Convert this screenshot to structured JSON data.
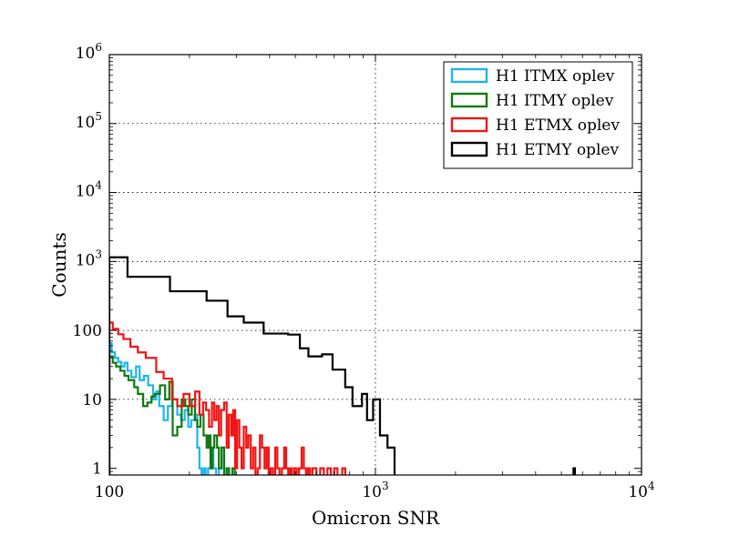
{
  "chart_data": {
    "type": "histogram",
    "xlabel": "Omicron SNR",
    "ylabel": "Counts",
    "x_scale": "log",
    "y_scale": "log",
    "xlim": [
      100,
      10000
    ],
    "ylim": [
      0.8,
      1000000
    ],
    "grid": true,
    "legend_position": "top-right",
    "x_ticks": [
      {
        "value": 100,
        "base": "100",
        "exp": ""
      },
      {
        "value": 1000,
        "base": "10",
        "exp": "3"
      },
      {
        "value": 10000,
        "base": "10",
        "exp": "4"
      }
    ],
    "y_ticks": [
      {
        "value": 1,
        "base": "1",
        "exp": ""
      },
      {
        "value": 10,
        "base": "10",
        "exp": ""
      },
      {
        "value": 100,
        "base": "100",
        "exp": ""
      },
      {
        "value": 1000,
        "base": "10",
        "exp": "3"
      },
      {
        "value": 10000,
        "base": "10",
        "exp": "4"
      },
      {
        "value": 100000,
        "base": "10",
        "exp": "5"
      },
      {
        "value": 1000000,
        "base": "10",
        "exp": "6"
      }
    ],
    "series": [
      {
        "name": "H1 ITMX oplev",
        "color": "#1eb4ec",
        "steps": [
          [
            100,
            65
          ],
          [
            102,
            48
          ],
          [
            105,
            40
          ],
          [
            108,
            35
          ],
          [
            111,
            30
          ],
          [
            114,
            34
          ],
          [
            117,
            26
          ],
          [
            121,
            21
          ],
          [
            126,
            30
          ],
          [
            130,
            19
          ],
          [
            135,
            22
          ],
          [
            140,
            16
          ],
          [
            146,
            10
          ],
          [
            150,
            13
          ],
          [
            154,
            8
          ],
          [
            160,
            5
          ],
          [
            166,
            8
          ],
          [
            172,
            10
          ],
          [
            180,
            6
          ],
          [
            186,
            5
          ],
          [
            192,
            7
          ],
          [
            198,
            4
          ],
          [
            203,
            5
          ],
          [
            209,
            6
          ],
          [
            214,
            2
          ],
          [
            218,
            1
          ],
          [
            222,
            0.5
          ],
          [
            226,
            1
          ],
          [
            230,
            0.5
          ],
          [
            235,
            1
          ],
          [
            240,
            2
          ],
          [
            246,
            1
          ],
          [
            252,
            0.5
          ],
          [
            258,
            1
          ],
          [
            264,
            2
          ],
          [
            270,
            0.5
          ],
          [
            276,
            1
          ],
          [
            280,
            0.5
          ]
        ]
      },
      {
        "name": "H1 ITMY oplev",
        "color": "#107a10",
        "steps": [
          [
            100,
            42
          ],
          [
            103,
            34
          ],
          [
            106,
            30
          ],
          [
            110,
            26
          ],
          [
            114,
            22
          ],
          [
            118,
            19
          ],
          [
            124,
            15
          ],
          [
            128,
            12
          ],
          [
            134,
            8
          ],
          [
            139,
            9
          ],
          [
            144,
            11
          ],
          [
            148,
            12
          ],
          [
            155,
            16
          ],
          [
            162,
            10
          ],
          [
            168,
            18
          ],
          [
            173,
            3
          ],
          [
            180,
            4
          ],
          [
            187,
            10
          ],
          [
            193,
            8
          ],
          [
            198,
            6
          ],
          [
            204,
            10
          ],
          [
            210,
            5
          ],
          [
            214,
            4
          ],
          [
            220,
            6
          ],
          [
            226,
            3
          ],
          [
            232,
            2
          ],
          [
            236,
            3
          ],
          [
            240,
            1
          ],
          [
            244,
            2
          ],
          [
            248,
            3
          ],
          [
            254,
            2
          ],
          [
            258,
            1
          ],
          [
            264,
            2
          ],
          [
            270,
            0.5
          ],
          [
            276,
            1
          ],
          [
            282,
            0.5
          ],
          [
            290,
            1
          ],
          [
            296,
            0.5
          ]
        ]
      },
      {
        "name": "H1 ETMX oplev",
        "color": "#f01414",
        "steps": [
          [
            100,
            130
          ],
          [
            103,
            105
          ],
          [
            108,
            88
          ],
          [
            113,
            75
          ],
          [
            120,
            58
          ],
          [
            128,
            48
          ],
          [
            137,
            40
          ],
          [
            150,
            25
          ],
          [
            160,
            20
          ],
          [
            172,
            10
          ],
          [
            180,
            8
          ],
          [
            190,
            12
          ],
          [
            200,
            8
          ],
          [
            210,
            13
          ],
          [
            218,
            6
          ],
          [
            225,
            9
          ],
          [
            231,
            7
          ],
          [
            237,
            4
          ],
          [
            243,
            9
          ],
          [
            248,
            5
          ],
          [
            253,
            8
          ],
          [
            258,
            3
          ],
          [
            263,
            7
          ],
          [
            270,
            9
          ],
          [
            276,
            2
          ],
          [
            281,
            6
          ],
          [
            287,
            3
          ],
          [
            292,
            7
          ],
          [
            297,
            1
          ],
          [
            302,
            5
          ],
          [
            308,
            2
          ],
          [
            314,
            1
          ],
          [
            320,
            4
          ],
          [
            327,
            2
          ],
          [
            333,
            3
          ],
          [
            340,
            1
          ],
          [
            347,
            2
          ],
          [
            354,
            0.5
          ],
          [
            361,
            1
          ],
          [
            368,
            3
          ],
          [
            375,
            2
          ],
          [
            383,
            1
          ],
          [
            390,
            2
          ],
          [
            397,
            0.5
          ],
          [
            404,
            1
          ],
          [
            412,
            0.5
          ],
          [
            420,
            2
          ],
          [
            428,
            1
          ],
          [
            436,
            0.5
          ],
          [
            445,
            1
          ],
          [
            454,
            2
          ],
          [
            462,
            1
          ],
          [
            470,
            0.5
          ],
          [
            478,
            1
          ],
          [
            486,
            0.5
          ],
          [
            496,
            1
          ],
          [
            506,
            0.5
          ],
          [
            516,
            1
          ],
          [
            528,
            2
          ],
          [
            538,
            1
          ],
          [
            548,
            0.5
          ],
          [
            558,
            1
          ],
          [
            568,
            0.5
          ],
          [
            580,
            1
          ],
          [
            600,
            0.5
          ],
          [
            620,
            1
          ],
          [
            640,
            0.5
          ],
          [
            660,
            1
          ],
          [
            680,
            0.5
          ],
          [
            700,
            1
          ],
          [
            720,
            0.5
          ],
          [
            750,
            1
          ],
          [
            770,
            0.5
          ]
        ]
      },
      {
        "name": "H1 ETMY oplev",
        "color": "#000000",
        "steps": [
          [
            100,
            1150
          ],
          [
            117,
            600
          ],
          [
            169,
            370
          ],
          [
            232,
            270
          ],
          [
            278,
            160
          ],
          [
            320,
            130
          ],
          [
            380,
            90
          ],
          [
            470,
            87
          ],
          [
            520,
            55
          ],
          [
            560,
            42
          ],
          [
            630,
            45
          ],
          [
            690,
            27
          ],
          [
            770,
            15
          ],
          [
            820,
            8
          ],
          [
            890,
            12
          ],
          [
            930,
            5
          ],
          [
            980,
            10
          ],
          [
            1040,
            3
          ],
          [
            1110,
            2
          ],
          [
            1180,
            0.5
          ],
          [
            5500,
            0.5
          ],
          [
            5550,
            1
          ],
          [
            5620,
            0.5
          ]
        ]
      }
    ]
  }
}
